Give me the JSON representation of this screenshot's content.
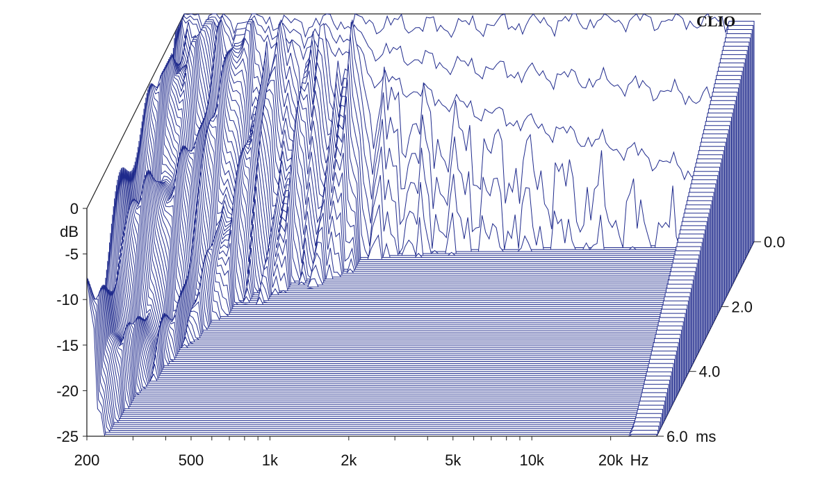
{
  "chart_data": {
    "type": "waterfall",
    "brand": "CLIO",
    "x_axis": {
      "unit": "Hz",
      "scale": "log",
      "range": [
        200,
        30000
      ],
      "ticks": [
        {
          "value": 200,
          "label": "200"
        },
        {
          "value": 500,
          "label": "500"
        },
        {
          "value": 1000,
          "label": "1k"
        },
        {
          "value": 2000,
          "label": "2k"
        },
        {
          "value": 5000,
          "label": "5k"
        },
        {
          "value": 10000,
          "label": "10k"
        },
        {
          "value": 20000,
          "label": "20k"
        }
      ]
    },
    "y_axis": {
      "unit": "dB",
      "range": [
        -25,
        0
      ],
      "ticks": [
        {
          "value": 0,
          "label": "0"
        },
        {
          "value": -5,
          "label": "-5"
        },
        {
          "value": -10,
          "label": "-10"
        },
        {
          "value": -15,
          "label": "-15"
        },
        {
          "value": -20,
          "label": "-20"
        },
        {
          "value": -25,
          "label": "-25"
        }
      ]
    },
    "z_axis": {
      "unit": "ms",
      "range": [
        0,
        6.0
      ],
      "ticks": [
        {
          "value": 0,
          "label": "0.0"
        },
        {
          "value": 2,
          "label": "2.0"
        },
        {
          "value": 4,
          "label": "4.0"
        },
        {
          "value": 6,
          "label": "6.0"
        }
      ]
    },
    "slices": 100,
    "line_color": "#1f2a8c",
    "initial_response_db": [
      {
        "hz": 200,
        "db": 0.0
      },
      {
        "hz": 250,
        "db": -0.2
      },
      {
        "hz": 300,
        "db": -0.8
      },
      {
        "hz": 400,
        "db": -0.4
      },
      {
        "hz": 500,
        "db": -1.2
      },
      {
        "hz": 700,
        "db": -0.8
      },
      {
        "hz": 1000,
        "db": -1.0
      },
      {
        "hz": 2000,
        "db": -1.4
      },
      {
        "hz": 5000,
        "db": -0.9
      },
      {
        "hz": 10000,
        "db": -0.6
      },
      {
        "hz": 20000,
        "db": -0.8
      }
    ]
  }
}
